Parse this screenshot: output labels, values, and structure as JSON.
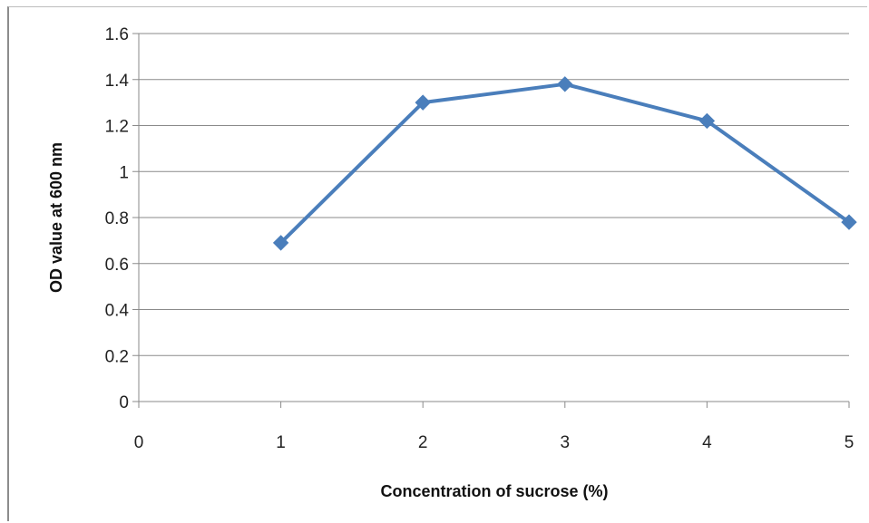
{
  "chart_data": {
    "type": "line",
    "xlabel": "Concentration of sucrose (%)",
    "ylabel": "OD value at 600 nm",
    "xlim": [
      0,
      5
    ],
    "ylim": [
      0,
      1.6
    ],
    "x_ticks": [
      "0",
      "1",
      "2",
      "3",
      "4",
      "5"
    ],
    "y_ticks": [
      "0",
      "0.2",
      "0.4",
      "0.6",
      "0.8",
      "1",
      "1.2",
      "1.4",
      "1.6"
    ],
    "grid": "horizontal",
    "legend": "none",
    "series": [
      {
        "x": [
          1,
          2,
          3,
          4,
          5
        ],
        "values": [
          0.69,
          1.3,
          1.38,
          1.22,
          0.78
        ],
        "color": "#4a7ebb",
        "marker": "diamond"
      }
    ]
  }
}
